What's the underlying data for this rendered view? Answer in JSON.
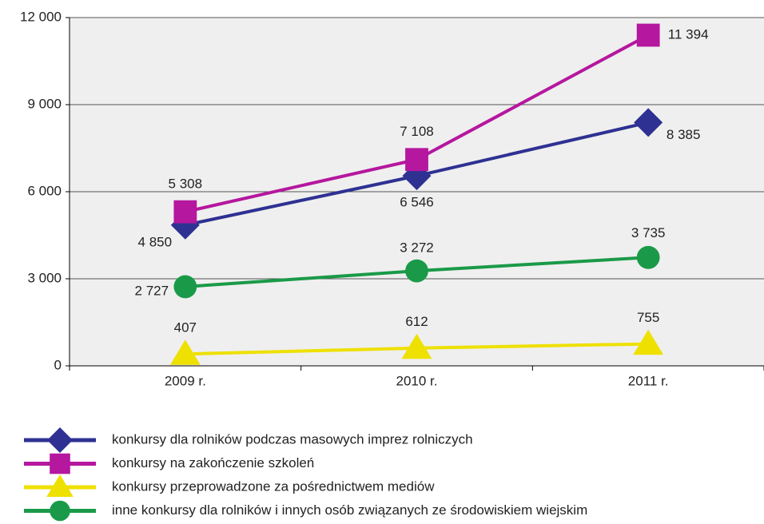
{
  "chart_data": {
    "type": "line",
    "categories": [
      "2009 r.",
      "2010 r.",
      "2011 r."
    ],
    "series": [
      {
        "name": "konkursy dla rolników podczas masowych imprez rolniczych",
        "color": "#2e3192",
        "marker": "diamond",
        "values": [
          4850,
          6546,
          8385
        ],
        "value_labels": [
          "4 850",
          "6 546",
          "8 385"
        ]
      },
      {
        "name": "konkursy na zakończenie szkoleń",
        "color": "#b5179e",
        "marker": "square",
        "values": [
          5308,
          7108,
          11394
        ],
        "value_labels": [
          "5 308",
          "7 108",
          "11 394"
        ]
      },
      {
        "name": "konkursy przeprowadzone za pośrednictwem mediów",
        "color": "#eee000",
        "marker": "triangle",
        "values": [
          407,
          612,
          755
        ]
      },
      {
        "name": "inne konkursy dla rolników i innych osób związanych ze środowiskiem wiejskim",
        "color": "#1a9a48",
        "marker": "circle",
        "values": [
          2727,
          3272,
          3735
        ],
        "value_labels": [
          "2 727",
          "3 272",
          "3 735"
        ]
      }
    ],
    "ylim": [
      0,
      12000
    ],
    "yticks": [
      0,
      {
        "value": 3000,
        "label": "3 000"
      },
      {
        "value": 6000,
        "label": "6 000"
      },
      {
        "value": 9000,
        "label": "9 000"
      },
      {
        "value": 12000,
        "label": "12 000"
      }
    ],
    "grid": true
  }
}
